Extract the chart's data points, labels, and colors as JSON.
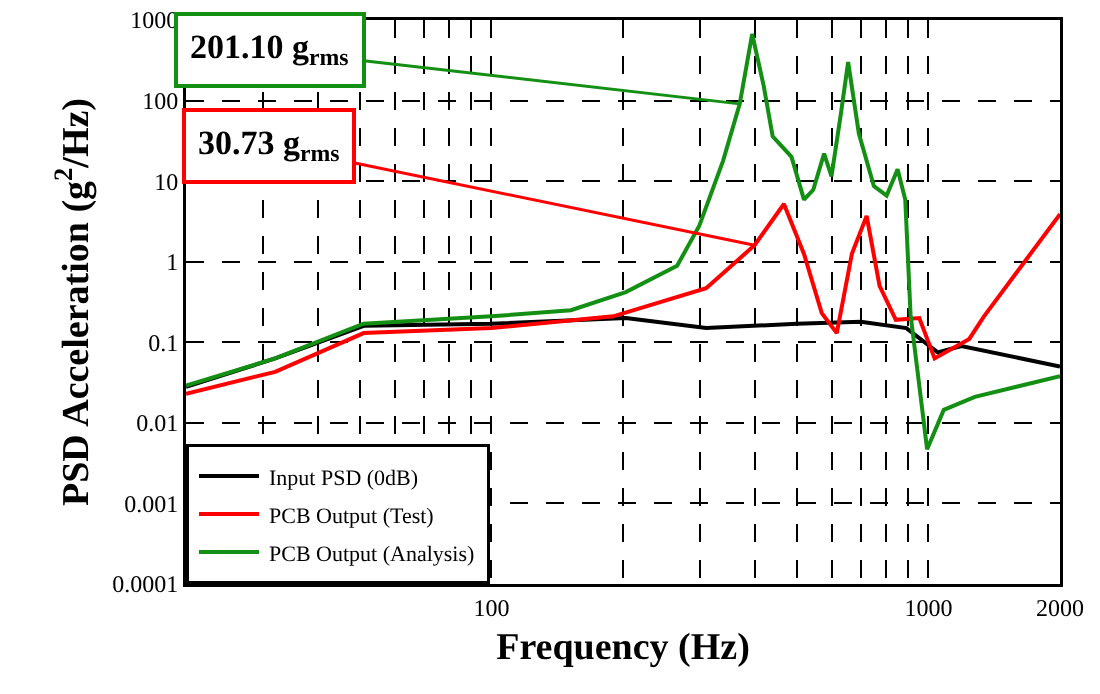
{
  "chart_data": {
    "type": "line",
    "xlabel": "Frequency (Hz)",
    "ylabel": "PSD Acceleration (g$^{2}$/Hz)",
    "log": "xy",
    "grid": true,
    "legend": "bottom left",
    "marker": "none",
    "line_style": "solid",
    "xlim": [
      20,
      2000
    ],
    "xticks": [
      {
        "value": 20,
        "label": null
      },
      {
        "value": 30,
        "label": null
      },
      {
        "value": 40,
        "label": null
      },
      {
        "value": 50,
        "label": null
      },
      {
        "value": 60,
        "label": null
      },
      {
        "value": 70,
        "label": null
      },
      {
        "value": 80,
        "label": null
      },
      {
        "value": 90,
        "label": null
      },
      100,
      {
        "value": 200,
        "label": null
      },
      {
        "value": 300,
        "label": null
      },
      {
        "value": 400,
        "label": null
      },
      {
        "value": 500,
        "label": null
      },
      {
        "value": 600,
        "label": null
      },
      {
        "value": 700,
        "label": null
      },
      {
        "value": 800,
        "label": null
      },
      {
        "value": 900,
        "label": null
      },
      1000,
      2000
    ],
    "ylim": [
      0.0001,
      1000
    ],
    "yticks": [
      0.0001,
      0.001,
      0.01,
      0.1,
      1,
      10,
      100,
      1000
    ],
    "series": [
      {
        "name": "Input PSD (0dB)",
        "color": "#000000",
        "x": [
          20,
          32,
          51,
          100,
          203,
          310,
          500,
          700,
          890,
          1050,
          1190,
          2000
        ],
        "values": [
          0.028,
          0.063,
          0.16,
          0.17,
          0.2,
          0.15,
          0.17,
          0.18,
          0.15,
          0.075,
          0.09,
          0.05
        ]
      },
      {
        "name": "PCB Output (Test)",
        "color": "#ff0000",
        "x": [
          20,
          32,
          51,
          100,
          190,
          310,
          400,
          467,
          519,
          570,
          617,
          668,
          722,
          773,
          842,
          953,
          1033,
          1240,
          1340,
          2000
        ],
        "values": [
          0.023,
          0.043,
          0.13,
          0.15,
          0.21,
          0.47,
          1.6,
          5.2,
          1.25,
          0.23,
          0.13,
          1.25,
          3.7,
          0.5,
          0.19,
          0.2,
          0.063,
          0.11,
          0.21,
          3.9
        ]
      },
      {
        "name": "PCB Output (Analysis)",
        "color": "#138f13",
        "x": [
          20,
          32,
          51,
          100,
          152,
          203,
          266,
          299,
          339,
          370,
          395,
          420,
          440,
          486,
          519,
          545,
          577,
          600,
          630,
          655,
          693,
          750,
          802,
          850,
          885,
          910,
          993,
          1084,
          1277,
          2000
        ],
        "values": [
          0.029,
          0.063,
          0.17,
          0.21,
          0.25,
          0.42,
          0.89,
          2.8,
          18,
          91,
          670,
          150,
          36,
          20,
          5.9,
          7.8,
          22,
          11.5,
          67,
          300,
          39,
          8.7,
          6.6,
          14,
          5.9,
          0.22,
          0.0047,
          0.0145,
          0.021,
          0.038
        ]
      }
    ],
    "annotations": [
      {
        "text": "201.10 g$_{rms}$",
        "x": 370,
        "y": 91
      },
      {
        "text": "30.73 g$_{rms}$",
        "x": 400,
        "y": 1.6
      }
    ]
  }
}
